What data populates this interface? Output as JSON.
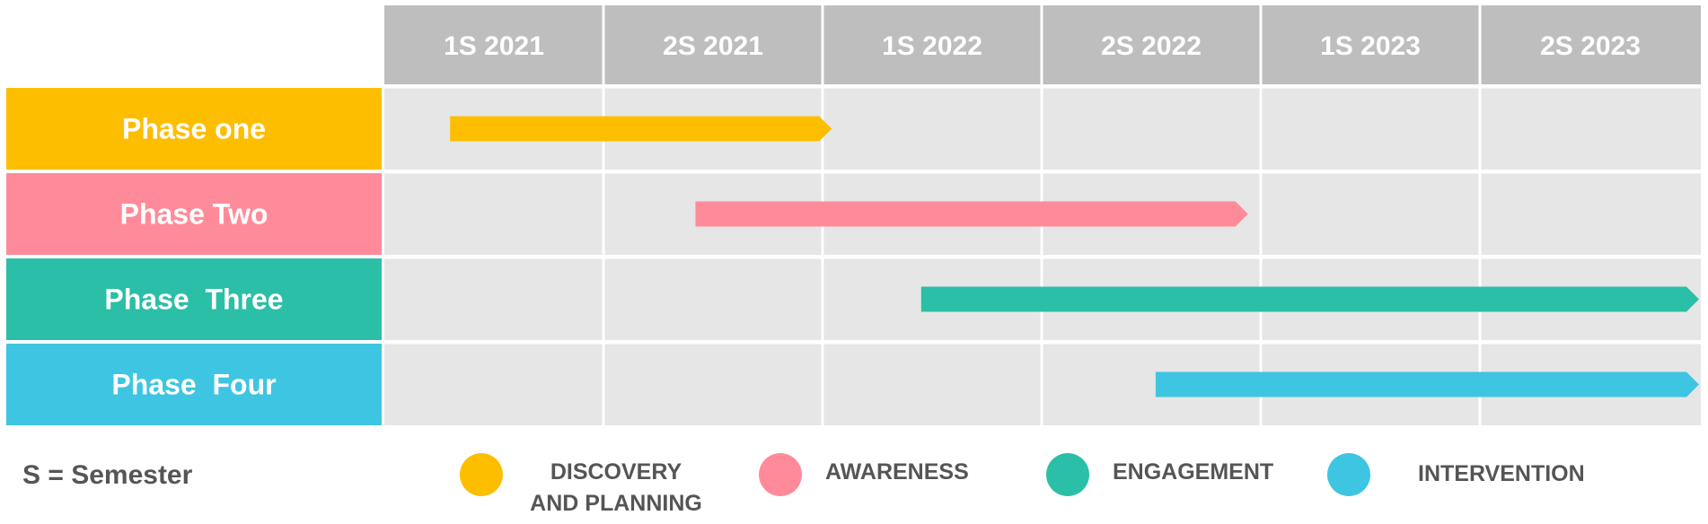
{
  "chart_data": {
    "type": "gantt",
    "periods": [
      "1S 2021",
      "2S 2021",
      "1S 2022",
      "2S 2022",
      "1S 2023",
      "2S 2023"
    ],
    "phases": [
      {
        "name": "Phase one",
        "color": "#FDBE00",
        "start": 0.3,
        "end": 2.05
      },
      {
        "name": "Phase Two",
        "color": "#FF8B9A",
        "start": 1.42,
        "end": 3.95
      },
      {
        "name": "Phase  Three",
        "color": "#2BBFA7",
        "start": 2.45,
        "end": 6.0
      },
      {
        "name": "Phase  Four",
        "color": "#3EC5E1",
        "start": 3.52,
        "end": 6.0
      }
    ],
    "colors": {
      "header": "#BEBEBE",
      "grid": "#E6E6E6",
      "text_light": "#FFFFFF",
      "text_dark": "#555555"
    }
  },
  "legend": {
    "note": "S = Semester",
    "items": [
      {
        "label": "DISCOVERY AND PLANNING",
        "color": "#FDBE00"
      },
      {
        "label": "AWARENESS",
        "color": "#FF8B9A"
      },
      {
        "label": "ENGAGEMENT",
        "color": "#2BBFA7"
      },
      {
        "label": "INTERVENTION",
        "color": "#3EC5E1"
      }
    ]
  }
}
